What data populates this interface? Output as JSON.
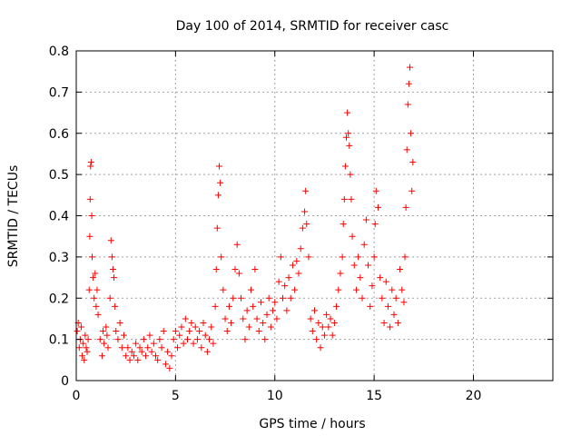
{
  "chart_data": {
    "type": "scatter",
    "title": "Day 100 of 2014, SRMTID for receiver casc",
    "xlabel": "GPS time / hours",
    "ylabel": "SRMTID / TECUs",
    "xlim": [
      0,
      24
    ],
    "ylim": [
      0,
      0.8
    ],
    "xticks": [
      0,
      5,
      10,
      15,
      20
    ],
    "xtick_labels": [
      "0",
      "5",
      "10",
      "15",
      "20"
    ],
    "yticks": [
      0,
      0.1,
      0.2,
      0.3,
      0.4,
      0.5,
      0.6,
      0.7,
      0.8
    ],
    "ytick_labels": [
      "0",
      "0.1",
      "0.2",
      "0.3",
      "0.4",
      "0.5",
      "0.6",
      "0.7",
      "0.8"
    ],
    "grid": true,
    "marker": "+",
    "color": "#ff0000",
    "series": [
      {
        "name": "SRMTID",
        "points": [
          [
            0.05,
            0.12
          ],
          [
            0.1,
            0.14
          ],
          [
            0.15,
            0.08
          ],
          [
            0.2,
            0.1
          ],
          [
            0.25,
            0.13
          ],
          [
            0.3,
            0.06
          ],
          [
            0.35,
            0.09
          ],
          [
            0.4,
            0.05
          ],
          [
            0.45,
            0.11
          ],
          [
            0.5,
            0.08
          ],
          [
            0.55,
            0.07
          ],
          [
            0.6,
            0.1
          ],
          [
            0.65,
            0.22
          ],
          [
            0.68,
            0.35
          ],
          [
            0.7,
            0.44
          ],
          [
            0.72,
            0.52
          ],
          [
            0.75,
            0.53
          ],
          [
            0.78,
            0.4
          ],
          [
            0.8,
            0.3
          ],
          [
            0.85,
            0.25
          ],
          [
            0.9,
            0.2
          ],
          [
            0.95,
            0.26
          ],
          [
            1.0,
            0.18
          ],
          [
            1.05,
            0.22
          ],
          [
            1.1,
            0.16
          ],
          [
            1.2,
            0.1
          ],
          [
            1.3,
            0.06
          ],
          [
            1.35,
            0.12
          ],
          [
            1.4,
            0.09
          ],
          [
            1.5,
            0.13
          ],
          [
            1.55,
            0.11
          ],
          [
            1.6,
            0.08
          ],
          [
            1.7,
            0.2
          ],
          [
            1.75,
            0.34
          ],
          [
            1.8,
            0.3
          ],
          [
            1.85,
            0.27
          ],
          [
            1.9,
            0.25
          ],
          [
            1.95,
            0.18
          ],
          [
            2.0,
            0.12
          ],
          [
            2.1,
            0.1
          ],
          [
            2.2,
            0.14
          ],
          [
            2.3,
            0.08
          ],
          [
            2.4,
            0.11
          ],
          [
            2.5,
            0.06
          ],
          [
            2.6,
            0.08
          ],
          [
            2.7,
            0.05
          ],
          [
            2.8,
            0.07
          ],
          [
            2.9,
            0.06
          ],
          [
            3.0,
            0.09
          ],
          [
            3.1,
            0.05
          ],
          [
            3.2,
            0.08
          ],
          [
            3.3,
            0.07
          ],
          [
            3.4,
            0.1
          ],
          [
            3.5,
            0.06
          ],
          [
            3.6,
            0.08
          ],
          [
            3.7,
            0.11
          ],
          [
            3.8,
            0.07
          ],
          [
            3.9,
            0.09
          ],
          [
            4.0,
            0.06
          ],
          [
            4.1,
            0.05
          ],
          [
            4.2,
            0.1
          ],
          [
            4.3,
            0.08
          ],
          [
            4.4,
            0.12
          ],
          [
            4.5,
            0.04
          ],
          [
            4.6,
            0.07
          ],
          [
            4.7,
            0.03
          ],
          [
            4.8,
            0.06
          ],
          [
            4.9,
            0.1
          ],
          [
            5.0,
            0.12
          ],
          [
            5.1,
            0.08
          ],
          [
            5.2,
            0.11
          ],
          [
            5.3,
            0.13
          ],
          [
            5.4,
            0.09
          ],
          [
            5.5,
            0.15
          ],
          [
            5.6,
            0.1
          ],
          [
            5.7,
            0.12
          ],
          [
            5.8,
            0.14
          ],
          [
            5.9,
            0.09
          ],
          [
            6.0,
            0.13
          ],
          [
            6.1,
            0.1
          ],
          [
            6.2,
            0.12
          ],
          [
            6.3,
            0.08
          ],
          [
            6.4,
            0.14
          ],
          [
            6.5,
            0.11
          ],
          [
            6.6,
            0.07
          ],
          [
            6.7,
            0.1
          ],
          [
            6.8,
            0.13
          ],
          [
            6.9,
            0.09
          ],
          [
            7.0,
            0.18
          ],
          [
            7.05,
            0.27
          ],
          [
            7.1,
            0.37
          ],
          [
            7.15,
            0.45
          ],
          [
            7.2,
            0.52
          ],
          [
            7.25,
            0.48
          ],
          [
            7.3,
            0.3
          ],
          [
            7.4,
            0.22
          ],
          [
            7.5,
            0.15
          ],
          [
            7.6,
            0.12
          ],
          [
            7.7,
            0.18
          ],
          [
            7.8,
            0.14
          ],
          [
            7.9,
            0.2
          ],
          [
            8.0,
            0.27
          ],
          [
            8.1,
            0.33
          ],
          [
            8.2,
            0.26
          ],
          [
            8.3,
            0.2
          ],
          [
            8.4,
            0.15
          ],
          [
            8.5,
            0.1
          ],
          [
            8.6,
            0.17
          ],
          [
            8.7,
            0.13
          ],
          [
            8.8,
            0.22
          ],
          [
            8.9,
            0.18
          ],
          [
            9.0,
            0.27
          ],
          [
            9.1,
            0.15
          ],
          [
            9.2,
            0.12
          ],
          [
            9.3,
            0.19
          ],
          [
            9.4,
            0.14
          ],
          [
            9.5,
            0.1
          ],
          [
            9.6,
            0.16
          ],
          [
            9.7,
            0.2
          ],
          [
            9.8,
            0.13
          ],
          [
            9.9,
            0.17
          ],
          [
            10.0,
            0.19
          ],
          [
            10.1,
            0.15
          ],
          [
            10.2,
            0.24
          ],
          [
            10.3,
            0.3
          ],
          [
            10.4,
            0.2
          ],
          [
            10.5,
            0.23
          ],
          [
            10.6,
            0.17
          ],
          [
            10.7,
            0.25
          ],
          [
            10.8,
            0.2
          ],
          [
            10.9,
            0.28
          ],
          [
            11.0,
            0.22
          ],
          [
            11.1,
            0.29
          ],
          [
            11.2,
            0.26
          ],
          [
            11.3,
            0.32
          ],
          [
            11.4,
            0.37
          ],
          [
            11.5,
            0.41
          ],
          [
            11.55,
            0.46
          ],
          [
            11.6,
            0.38
          ],
          [
            11.7,
            0.3
          ],
          [
            11.8,
            0.15
          ],
          [
            11.9,
            0.12
          ],
          [
            12.0,
            0.17
          ],
          [
            12.1,
            0.1
          ],
          [
            12.2,
            0.14
          ],
          [
            12.3,
            0.08
          ],
          [
            12.4,
            0.13
          ],
          [
            12.5,
            0.11
          ],
          [
            12.6,
            0.16
          ],
          [
            12.7,
            0.13
          ],
          [
            12.8,
            0.15
          ],
          [
            12.9,
            0.11
          ],
          [
            13.0,
            0.14
          ],
          [
            13.1,
            0.18
          ],
          [
            13.2,
            0.22
          ],
          [
            13.3,
            0.26
          ],
          [
            13.4,
            0.3
          ],
          [
            13.45,
            0.38
          ],
          [
            13.5,
            0.44
          ],
          [
            13.55,
            0.52
          ],
          [
            13.6,
            0.59
          ],
          [
            13.65,
            0.65
          ],
          [
            13.7,
            0.6
          ],
          [
            13.75,
            0.57
          ],
          [
            13.8,
            0.5
          ],
          [
            13.85,
            0.44
          ],
          [
            13.9,
            0.35
          ],
          [
            14.0,
            0.28
          ],
          [
            14.1,
            0.22
          ],
          [
            14.2,
            0.3
          ],
          [
            14.3,
            0.25
          ],
          [
            14.4,
            0.2
          ],
          [
            14.5,
            0.33
          ],
          [
            14.6,
            0.39
          ],
          [
            14.7,
            0.28
          ],
          [
            14.8,
            0.18
          ],
          [
            14.9,
            0.23
          ],
          [
            15.0,
            0.3
          ],
          [
            15.05,
            0.38
          ],
          [
            15.1,
            0.46
          ],
          [
            15.2,
            0.42
          ],
          [
            15.3,
            0.25
          ],
          [
            15.4,
            0.2
          ],
          [
            15.5,
            0.14
          ],
          [
            15.6,
            0.24
          ],
          [
            15.7,
            0.18
          ],
          [
            15.8,
            0.13
          ],
          [
            15.9,
            0.22
          ],
          [
            16.0,
            0.16
          ],
          [
            16.1,
            0.2
          ],
          [
            16.2,
            0.14
          ],
          [
            16.3,
            0.27
          ],
          [
            16.4,
            0.22
          ],
          [
            16.5,
            0.19
          ],
          [
            16.55,
            0.3
          ],
          [
            16.6,
            0.42
          ],
          [
            16.65,
            0.56
          ],
          [
            16.7,
            0.67
          ],
          [
            16.75,
            0.72
          ],
          [
            16.8,
            0.76
          ],
          [
            16.85,
            0.6
          ],
          [
            16.9,
            0.46
          ],
          [
            16.95,
            0.53
          ]
        ]
      }
    ]
  }
}
